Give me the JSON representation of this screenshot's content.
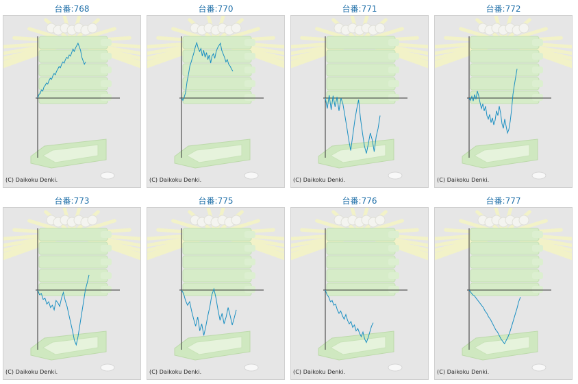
{
  "label_prefix": "台番:",
  "copyright": "(C) Daikoku Denki.",
  "line_color": "#1a8fc2",
  "machines": [
    {
      "number": "768",
      "trend": [
        0,
        0.06,
        0.08,
        0.14,
        0.12,
        0.19,
        0.22,
        0.26,
        0.24,
        0.3,
        0.34,
        0.32,
        0.38,
        0.42,
        0.4,
        0.46,
        0.5,
        0.54,
        0.52,
        0.58,
        0.62,
        0.6,
        0.66,
        0.7,
        0.68,
        0.74,
        0.72,
        0.78,
        0.84,
        0.8,
        0.86,
        0.9,
        0.94,
        0.88,
        0.82,
        0.7,
        0.64,
        0.58,
        0.62
      ]
    },
    {
      "number": "770",
      "trend": [
        0,
        -0.04,
        0.02,
        0.1,
        0.28,
        0.4,
        0.55,
        0.62,
        0.7,
        0.78,
        0.88,
        0.95,
        0.86,
        0.8,
        0.85,
        0.72,
        0.82,
        0.7,
        0.78,
        0.66,
        0.74,
        0.6,
        0.72,
        0.76,
        0.68,
        0.8,
        0.86,
        0.9,
        0.94,
        0.82,
        0.76,
        0.7,
        0.62,
        0.66,
        0.58,
        0.55,
        0.5,
        0.46
      ]
    },
    {
      "number": "771",
      "trend": [
        0,
        -0.18,
        0.05,
        -0.2,
        0.04,
        -0.15,
        0.02,
        -0.22,
        0.0,
        -0.1,
        -0.3,
        -0.5,
        -0.72,
        -0.9,
        -0.65,
        -0.4,
        -0.2,
        -0.03,
        -0.35,
        -0.6,
        -0.82,
        -0.95,
        -0.78,
        -0.6,
        -0.72,
        -0.92,
        -0.66,
        -0.52,
        -0.3
      ]
    },
    {
      "number": "772",
      "trend": [
        0,
        -0.04,
        0.03,
        -0.05,
        0.06,
        -0.02,
        0.12,
        0.04,
        -0.08,
        -0.18,
        -0.1,
        -0.22,
        -0.14,
        -0.3,
        -0.36,
        -0.28,
        -0.42,
        -0.34,
        -0.46,
        -0.38,
        -0.22,
        -0.3,
        -0.14,
        -0.26,
        -0.44,
        -0.52,
        -0.36,
        -0.48,
        -0.6,
        -0.54,
        -0.4,
        -0.2,
        0.06,
        0.22,
        0.36,
        0.5
      ]
    },
    {
      "number": "773",
      "trend": [
        0,
        -0.08,
        -0.06,
        -0.16,
        -0.14,
        -0.24,
        -0.2,
        -0.3,
        -0.26,
        -0.34,
        -0.18,
        -0.22,
        -0.28,
        -0.14,
        -0.04,
        -0.18,
        -0.28,
        -0.42,
        -0.56,
        -0.7,
        -0.86,
        -0.94,
        -0.8,
        -0.6,
        -0.4,
        -0.2,
        0.0,
        0.12,
        0.26
      ]
    },
    {
      "number": "775",
      "trend": [
        0,
        -0.06,
        -0.18,
        -0.26,
        -0.2,
        -0.36,
        -0.5,
        -0.62,
        -0.46,
        -0.7,
        -0.58,
        -0.78,
        -0.62,
        -0.44,
        -0.28,
        -0.08,
        0.02,
        -0.14,
        -0.34,
        -0.52,
        -0.4,
        -0.58,
        -0.46,
        -0.3,
        -0.44,
        -0.6,
        -0.48,
        -0.34
      ]
    },
    {
      "number": "776",
      "trend": [
        0,
        -0.08,
        -0.12,
        -0.2,
        -0.18,
        -0.26,
        -0.24,
        -0.34,
        -0.4,
        -0.36,
        -0.44,
        -0.5,
        -0.42,
        -0.52,
        -0.58,
        -0.54,
        -0.64,
        -0.6,
        -0.7,
        -0.66,
        -0.74,
        -0.8,
        -0.72,
        -0.84,
        -0.9,
        -0.82,
        -0.72,
        -0.62,
        -0.56
      ]
    },
    {
      "number": "777",
      "trend": [
        0,
        -0.04,
        -0.08,
        -0.1,
        -0.14,
        -0.18,
        -0.22,
        -0.26,
        -0.3,
        -0.36,
        -0.4,
        -0.46,
        -0.5,
        -0.56,
        -0.62,
        -0.68,
        -0.72,
        -0.78,
        -0.84,
        -0.88,
        -0.92,
        -0.86,
        -0.8,
        -0.72,
        -0.62,
        -0.52,
        -0.42,
        -0.32,
        -0.2,
        -0.12
      ]
    }
  ]
}
